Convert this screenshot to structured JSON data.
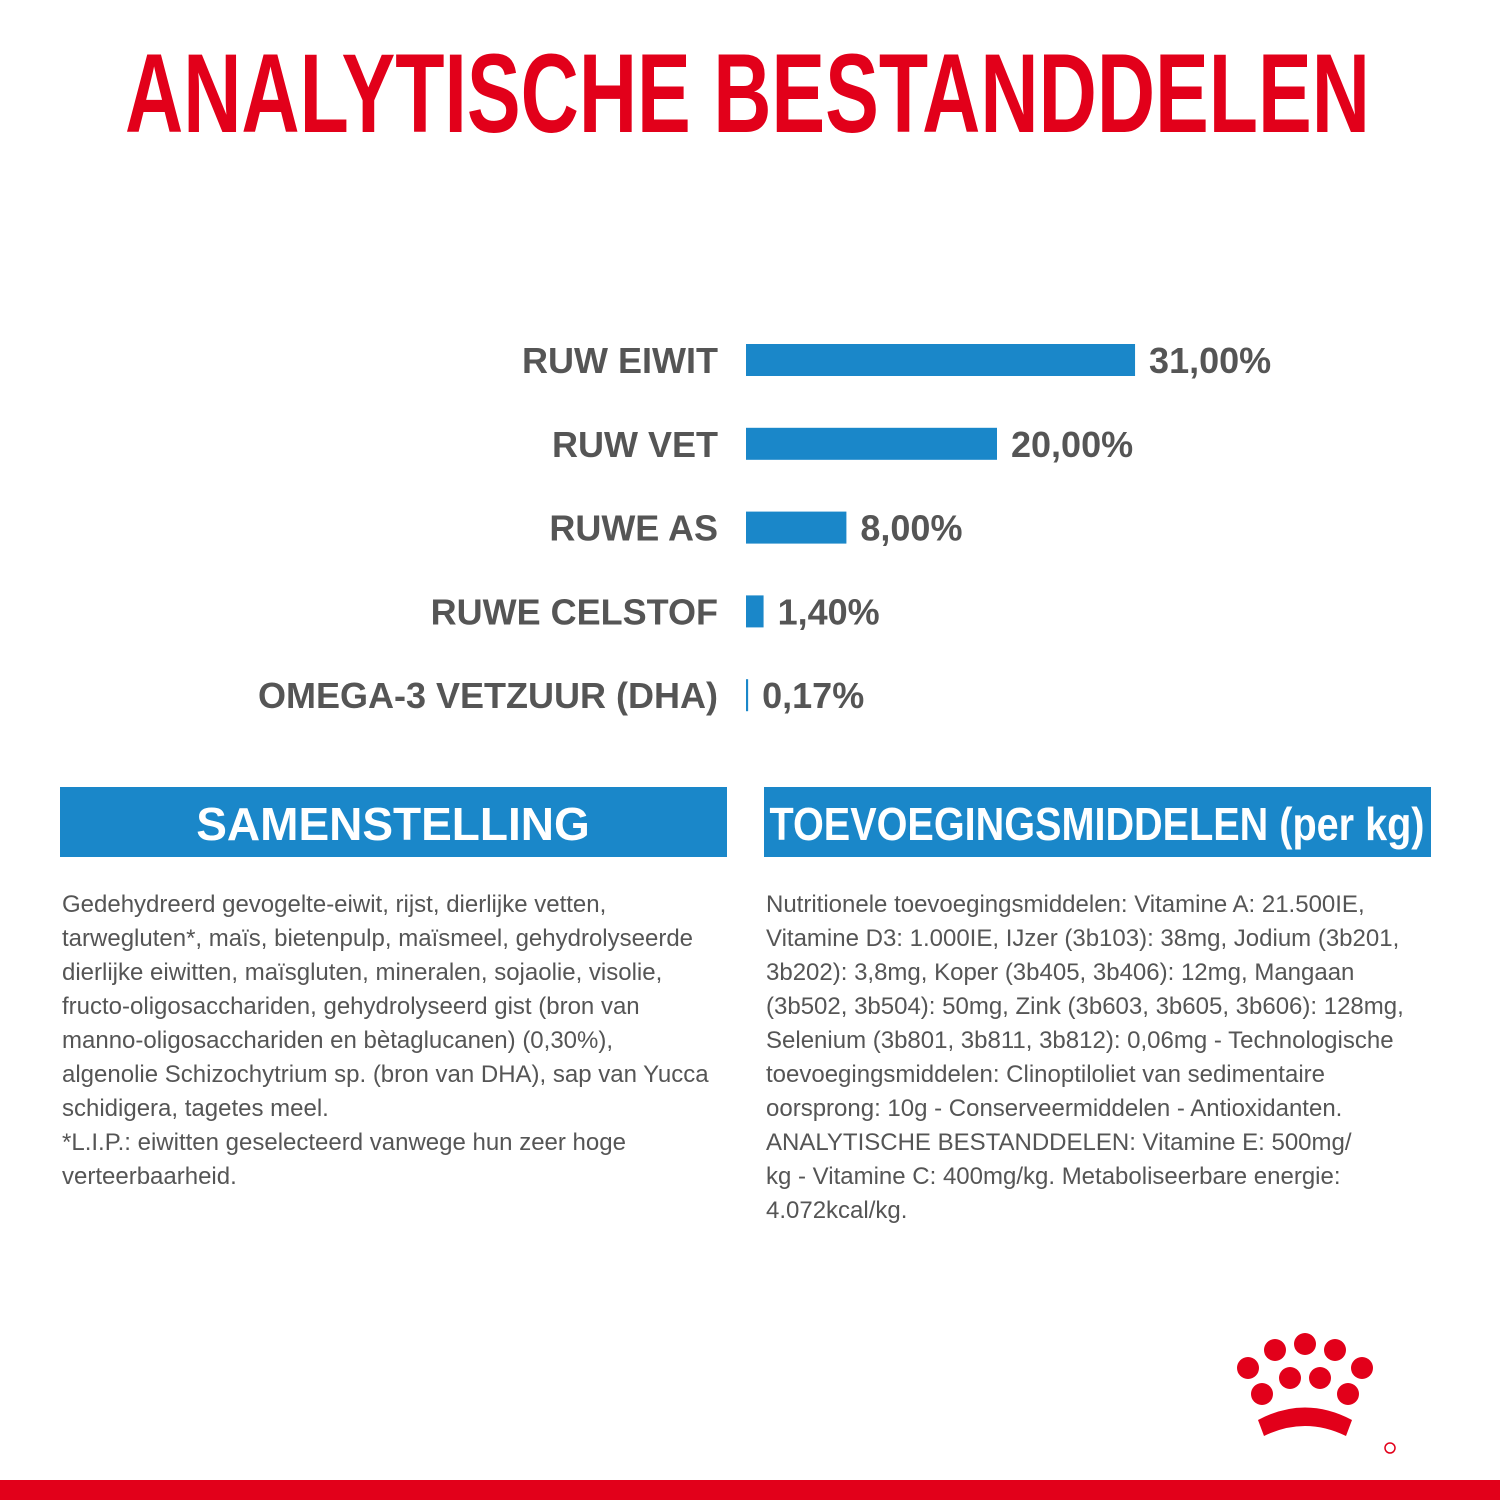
{
  "chart_data": {
    "type": "bar",
    "title": "ANALYTISCHE BESTANDDELEN",
    "categories": [
      "RUW EIWIT",
      "RUW VET",
      "RUWE AS",
      "RUWE CELSTOF",
      "OMEGA-3 VETZUUR (DHA)"
    ],
    "values": [
      31,
      20,
      8,
      1.4,
      0.17
    ],
    "value_labels": [
      "31,00%",
      "20,00%",
      "8,00%",
      "1,40%",
      "0,17%"
    ],
    "color": "#1a87c9"
  },
  "sections": [
    {
      "title": "SAMENSTELLING",
      "lines": [
        "Gedehydreerd gevogelte-eiwit, rijst, dierlijke vetten,",
        "tarwegluten*, maïs, bietenpulp, maïsmeel, gehydrolyseerde",
        "dierlijke eiwitten, maïsgluten, mineralen, sojaolie, visolie,",
        "fructo-oligosacchariden, gehydrolyseerd gist (bron van",
        "manno-oligosacchariden en bètaglucanen) (0,30%),",
        "algenolie Schizochytrium sp. (bron van DHA), sap van Yucca",
        "schidigera, tagetes meel.",
        "*L.I.P.: eiwitten geselecteerd vanwege hun zeer hoge",
        "verteerbaarheid."
      ]
    },
    {
      "title": "TOEVOEGINGSMIDDELEN (per kg)",
      "lines": [
        "Nutritionele toevoegingsmiddelen: Vitamine A: 21.500IE,",
        "Vitamine D3: 1.000IE, IJzer (3b103): 38mg, Jodium (3b201,",
        "3b202): 3,8mg, Koper (3b405, 3b406): 12mg, Mangaan",
        "(3b502, 3b504): 50mg, Zink (3b603, 3b605, 3b606): 128mg,",
        "Selenium (3b801, 3b811, 3b812): 0,06mg - Technologische",
        "toevoegingsmiddelen: Clinoptiloliet van sedimentaire",
        "oorsprong: 10g - Conserveermiddelen - Antioxidanten.",
        "ANALYTISCHE BESTANDDELEN: Vitamine E: 500mg/",
        "kg - Vitamine C: 400mg/kg. Metaboliseerbare energie:",
        "4.072kcal/kg."
      ]
    }
  ]
}
